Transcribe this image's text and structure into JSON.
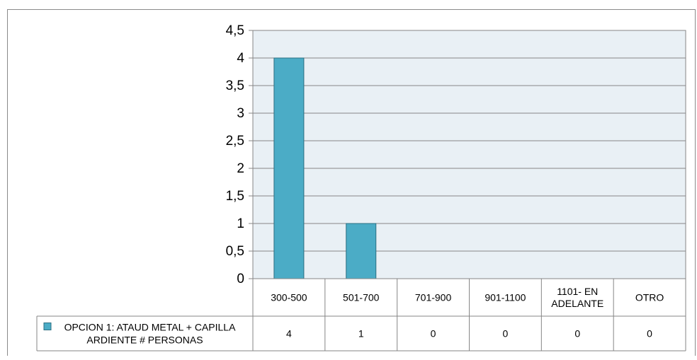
{
  "chart_data": {
    "type": "bar",
    "categories": [
      "300-500",
      "501-700",
      "701-900",
      "901-1100",
      "1101- EN ADELANTE",
      "OTRO"
    ],
    "category_lines": [
      [
        "300-500"
      ],
      [
        "501-700"
      ],
      [
        "701-900"
      ],
      [
        "901-1100"
      ],
      [
        "1101- EN",
        "ADELANTE"
      ],
      [
        "OTRO"
      ]
    ],
    "series": [
      {
        "name": "OPCION 1: ATAUD METAL + CAPILLA ARDIENTE # PERSONAS",
        "name_lines": [
          "OPCION 1: ATAUD METAL + CAPILLA",
          "ARDIENTE # PERSONAS"
        ],
        "values": [
          4,
          1,
          0,
          0,
          0,
          0
        ],
        "value_labels": [
          "4",
          "1",
          "0",
          "0",
          "0",
          "0"
        ],
        "color": "#4bacc6",
        "stroke": "#2c6f82"
      }
    ],
    "yticks": [
      "0",
      "0,5",
      "1",
      "1,5",
      "2",
      "2,5",
      "3",
      "3,5",
      "4",
      "4,5"
    ],
    "ylim": [
      0,
      4.5
    ],
    "grid": true,
    "plot_background": "#e9f0f5",
    "data_table": true
  }
}
